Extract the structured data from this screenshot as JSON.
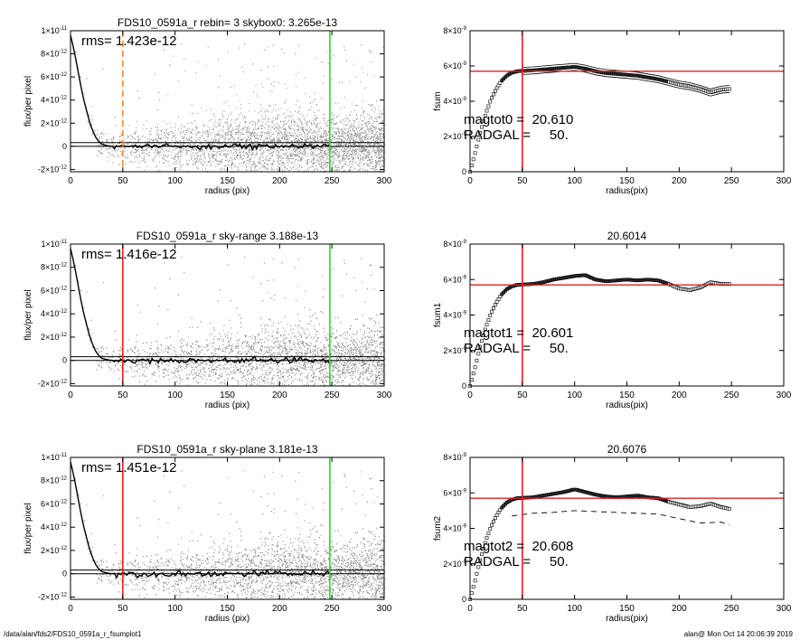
{
  "footer": {
    "left": "/data/alan/fds2/FDS10_0591a_r_fsumplot1",
    "right": "alan@  Mon Oct 14 20:06:39 2019"
  },
  "colors": {
    "points": "#8c8c8c",
    "profile": "#000000",
    "red": "#e0201c",
    "green": "#22dd22",
    "orange": "#f08c22"
  },
  "chart_data": [
    {
      "type": "scatter",
      "title": "FDS10_0591a_r rebin= 3    skybox0:  3.265e-13",
      "annotation": "rms= 1.423e-12",
      "xlabel": "radius (pix)",
      "ylabel": "flux/per pixel",
      "xlim": [
        0,
        300
      ],
      "ylim": [
        -2.2e-12,
        1e-11
      ],
      "xticks": [
        0,
        50,
        100,
        150,
        200,
        250,
        300
      ],
      "ytick_labels": [
        {
          "v": 1e-11,
          "label": "1×10",
          "exp": "-11"
        },
        {
          "v": 8e-12,
          "label": "8×10",
          "exp": "-12"
        },
        {
          "v": 6e-12,
          "label": "6×10",
          "exp": "-12"
        },
        {
          "v": 4e-12,
          "label": "4×10",
          "exp": "-12"
        },
        {
          "v": 2e-12,
          "label": "2×10",
          "exp": "-12"
        },
        {
          "v": 0,
          "label": "0",
          "exp": ""
        },
        {
          "v": -2e-12,
          "label": "-2×10",
          "exp": "-12"
        }
      ],
      "hlines": [
        3.265e-13,
        0
      ],
      "vlines": [
        {
          "x": 50,
          "color": "orange",
          "dash": true
        },
        {
          "x": 248,
          "color": "green",
          "dash": false
        }
      ],
      "profile": {
        "x": [
          0,
          3,
          6,
          9,
          12,
          15,
          18,
          21,
          24,
          27,
          30,
          35,
          40,
          50,
          60,
          80,
          100,
          150,
          200,
          248
        ],
        "y": [
          9.6e-12,
          8.5e-12,
          7.1e-12,
          5.6e-12,
          4.3e-12,
          3.2e-12,
          2.2e-12,
          1.4e-12,
          8e-13,
          4e-13,
          1.8e-13,
          6e-14,
          0,
          -1e-14,
          0,
          -2e-14,
          1e-14,
          0,
          0,
          0
        ]
      }
    },
    {
      "type": "line",
      "title": "",
      "annotation_lines": [
        "magtot0 =  20.610",
        "RADGAL =     50."
      ],
      "xlabel": "radius(pix)",
      "ylabel": "fsum",
      "xlim": [
        0,
        300
      ],
      "ylim": [
        0,
        8e-09
      ],
      "xticks": [
        0,
        50,
        100,
        150,
        200,
        250,
        300
      ],
      "ytick_labels": [
        {
          "v": 8e-09,
          "label": "8×10",
          "exp": "-9"
        },
        {
          "v": 6e-09,
          "label": "6×10",
          "exp": "-9"
        },
        {
          "v": 4e-09,
          "label": "4×10",
          "exp": "-9"
        },
        {
          "v": 2e-09,
          "label": "2×10",
          "exp": "-9"
        },
        {
          "v": 0,
          "label": "0",
          "exp": ""
        }
      ],
      "hline": 5.7e-09,
      "vline": 50,
      "curve": {
        "x": [
          0,
          5,
          10,
          15,
          20,
          25,
          30,
          35,
          40,
          45,
          50,
          60,
          70,
          80,
          90,
          100,
          110,
          120,
          130,
          140,
          150,
          160,
          170,
          180,
          190,
          200,
          210,
          220,
          230,
          240,
          248
        ],
        "y": [
          0,
          1.1e-09,
          2.3e-09,
          3.3e-09,
          4.1e-09,
          4.7e-09,
          5.15e-09,
          5.45e-09,
          5.62e-09,
          5.7e-09,
          5.72e-09,
          5.75e-09,
          5.8e-09,
          5.85e-09,
          5.9e-09,
          5.95e-09,
          5.85e-09,
          5.7e-09,
          5.6e-09,
          5.55e-09,
          5.5e-09,
          5.45e-09,
          5.35e-09,
          5.25e-09,
          5.1e-09,
          4.95e-09,
          4.85e-09,
          4.7e-09,
          4.5e-09,
          4.65e-09,
          4.7e-09
        ]
      },
      "band": 2e-10,
      "lower_dashed": false
    },
    {
      "type": "scatter",
      "title": "FDS10_0591a_r sky-range  3.188e-13",
      "annotation": "rms= 1.416e-12",
      "xlabel": "radius (pix)",
      "ylabel": "flux/per pixel",
      "xlim": [
        0,
        300
      ],
      "ylim": [
        -2.2e-12,
        1e-11
      ],
      "xticks": [
        0,
        50,
        100,
        150,
        200,
        250,
        300
      ],
      "ytick_labels": [
        {
          "v": 1e-11,
          "label": "1×10",
          "exp": "-11"
        },
        {
          "v": 8e-12,
          "label": "8×10",
          "exp": "-12"
        },
        {
          "v": 6e-12,
          "label": "6×10",
          "exp": "-12"
        },
        {
          "v": 4e-12,
          "label": "4×10",
          "exp": "-12"
        },
        {
          "v": 2e-12,
          "label": "2×10",
          "exp": "-12"
        },
        {
          "v": 0,
          "label": "0",
          "exp": ""
        },
        {
          "v": -2e-12,
          "label": "-2×10",
          "exp": "-12"
        }
      ],
      "hlines": [
        3.188e-13,
        0
      ],
      "vlines": [
        {
          "x": 50,
          "color": "red",
          "dash": false
        },
        {
          "x": 248,
          "color": "green",
          "dash": false
        }
      ],
      "profile": {
        "x": [
          0,
          3,
          6,
          9,
          12,
          15,
          18,
          21,
          24,
          27,
          30,
          35,
          40,
          50,
          60,
          80,
          100,
          150,
          200,
          248
        ],
        "y": [
          9.6e-12,
          8.5e-12,
          7.1e-12,
          5.6e-12,
          4.3e-12,
          3.2e-12,
          2.2e-12,
          1.4e-12,
          8e-13,
          4e-13,
          1.8e-13,
          6e-14,
          0,
          -1e-14,
          0,
          -2e-14,
          1e-14,
          0,
          0,
          0
        ]
      }
    },
    {
      "type": "line",
      "title": "20.6014",
      "annotation_lines": [
        "magtot1 =  20.601",
        "RADGAL =     50."
      ],
      "xlabel": "radius(pix)",
      "ylabel": "fsum1",
      "xlim": [
        0,
        300
      ],
      "ylim": [
        0,
        8e-09
      ],
      "xticks": [
        0,
        50,
        100,
        150,
        200,
        250,
        300
      ],
      "ytick_labels": [
        {
          "v": 8e-09,
          "label": "8×10",
          "exp": "-9"
        },
        {
          "v": 6e-09,
          "label": "6×10",
          "exp": "-9"
        },
        {
          "v": 4e-09,
          "label": "4×10",
          "exp": "-9"
        },
        {
          "v": 2e-09,
          "label": "2×10",
          "exp": "-9"
        },
        {
          "v": 0,
          "label": "0",
          "exp": ""
        }
      ],
      "hline": 5.7e-09,
      "vline": 50,
      "curve": {
        "x": [
          0,
          5,
          10,
          15,
          20,
          25,
          30,
          35,
          40,
          45,
          50,
          60,
          70,
          80,
          90,
          100,
          110,
          120,
          130,
          140,
          150,
          160,
          170,
          180,
          190,
          200,
          210,
          220,
          230,
          240,
          248
        ],
        "y": [
          0,
          1.1e-09,
          2.3e-09,
          3.3e-09,
          4.1e-09,
          4.7e-09,
          5.15e-09,
          5.45e-09,
          5.62e-09,
          5.7e-09,
          5.72e-09,
          5.75e-09,
          5.85e-09,
          6e-09,
          6.1e-09,
          6.2e-09,
          6.25e-09,
          6e-09,
          5.9e-09,
          5.95e-09,
          6e-09,
          5.95e-09,
          6e-09,
          5.95e-09,
          5.75e-09,
          5.5e-09,
          5.4e-09,
          5.55e-09,
          5.85e-09,
          5.75e-09,
          5.75e-09
        ]
      },
      "band": 0,
      "lower_dashed": false
    },
    {
      "type": "scatter",
      "title": "FDS10_0591a_r sky-plane  3.181e-13",
      "annotation": "rms= 1.451e-12",
      "xlabel": "radius (pix)",
      "ylabel": "flux/per pixel",
      "xlim": [
        0,
        300
      ],
      "ylim": [
        -2.2e-12,
        1e-11
      ],
      "xticks": [
        0,
        50,
        100,
        150,
        200,
        250,
        300
      ],
      "ytick_labels": [
        {
          "v": 1e-11,
          "label": "1×10",
          "exp": "-11"
        },
        {
          "v": 8e-12,
          "label": "8×10",
          "exp": "-12"
        },
        {
          "v": 6e-12,
          "label": "6×10",
          "exp": "-12"
        },
        {
          "v": 4e-12,
          "label": "4×10",
          "exp": "-12"
        },
        {
          "v": 2e-12,
          "label": "2×10",
          "exp": "-12"
        },
        {
          "v": 0,
          "label": "0",
          "exp": ""
        },
        {
          "v": -2e-12,
          "label": "-2×10",
          "exp": "-12"
        }
      ],
      "hlines": [
        3.181e-13,
        0
      ],
      "vlines": [
        {
          "x": 50,
          "color": "red",
          "dash": false
        },
        {
          "x": 248,
          "color": "green",
          "dash": false
        }
      ],
      "profile": {
        "x": [
          0,
          3,
          6,
          9,
          12,
          15,
          18,
          21,
          24,
          27,
          30,
          35,
          40,
          50,
          60,
          80,
          100,
          150,
          200,
          248
        ],
        "y": [
          9.6e-12,
          8.5e-12,
          7.1e-12,
          5.6e-12,
          4.3e-12,
          3.2e-12,
          2.2e-12,
          1.4e-12,
          8e-13,
          4e-13,
          1.8e-13,
          6e-14,
          0,
          -1e-14,
          0,
          -2e-14,
          1e-14,
          0,
          0,
          0
        ]
      }
    },
    {
      "type": "line",
      "title": "20.6076",
      "annotation_lines": [
        "magtot2 =  20.608",
        "RADGAL =     50."
      ],
      "xlabel": "radius(pix)",
      "ylabel": "fsum2",
      "xlim": [
        0,
        300
      ],
      "ylim": [
        0,
        8e-09
      ],
      "xticks": [
        0,
        50,
        100,
        150,
        200,
        250,
        300
      ],
      "ytick_labels": [
        {
          "v": 8e-09,
          "label": "8×10",
          "exp": "-9"
        },
        {
          "v": 6e-09,
          "label": "6×10",
          "exp": "-9"
        },
        {
          "v": 4e-09,
          "label": "4×10",
          "exp": "-9"
        },
        {
          "v": 2e-09,
          "label": "2×10",
          "exp": "-9"
        },
        {
          "v": 0,
          "label": "0",
          "exp": ""
        }
      ],
      "hline": 5.7e-09,
      "vline": 50,
      "curve": {
        "x": [
          0,
          5,
          10,
          15,
          20,
          25,
          30,
          35,
          40,
          45,
          50,
          60,
          70,
          80,
          90,
          100,
          110,
          120,
          130,
          140,
          150,
          160,
          170,
          180,
          190,
          200,
          210,
          220,
          230,
          240,
          248
        ],
        "y": [
          0,
          1.1e-09,
          2.3e-09,
          3.3e-09,
          4.1e-09,
          4.7e-09,
          5.15e-09,
          5.45e-09,
          5.62e-09,
          5.7e-09,
          5.72e-09,
          5.75e-09,
          5.85e-09,
          5.95e-09,
          6.05e-09,
          6.2e-09,
          6.05e-09,
          5.9e-09,
          5.8e-09,
          5.75e-09,
          5.8e-09,
          5.85e-09,
          5.75e-09,
          5.7e-09,
          5.5e-09,
          5.35e-09,
          5.2e-09,
          5.25e-09,
          5.4e-09,
          5.2e-09,
          5.1e-09
        ]
      },
      "band": 0,
      "lower_dashed": true,
      "lower_curve": {
        "x": [
          40,
          60,
          80,
          100,
          120,
          140,
          160,
          180,
          200,
          220,
          240,
          248
        ],
        "y": [
          4.7e-09,
          4.85e-09,
          4.9e-09,
          5e-09,
          4.95e-09,
          4.9e-09,
          4.85e-09,
          4.8e-09,
          4.55e-09,
          4.3e-09,
          4.35e-09,
          4.2e-09
        ]
      }
    }
  ]
}
